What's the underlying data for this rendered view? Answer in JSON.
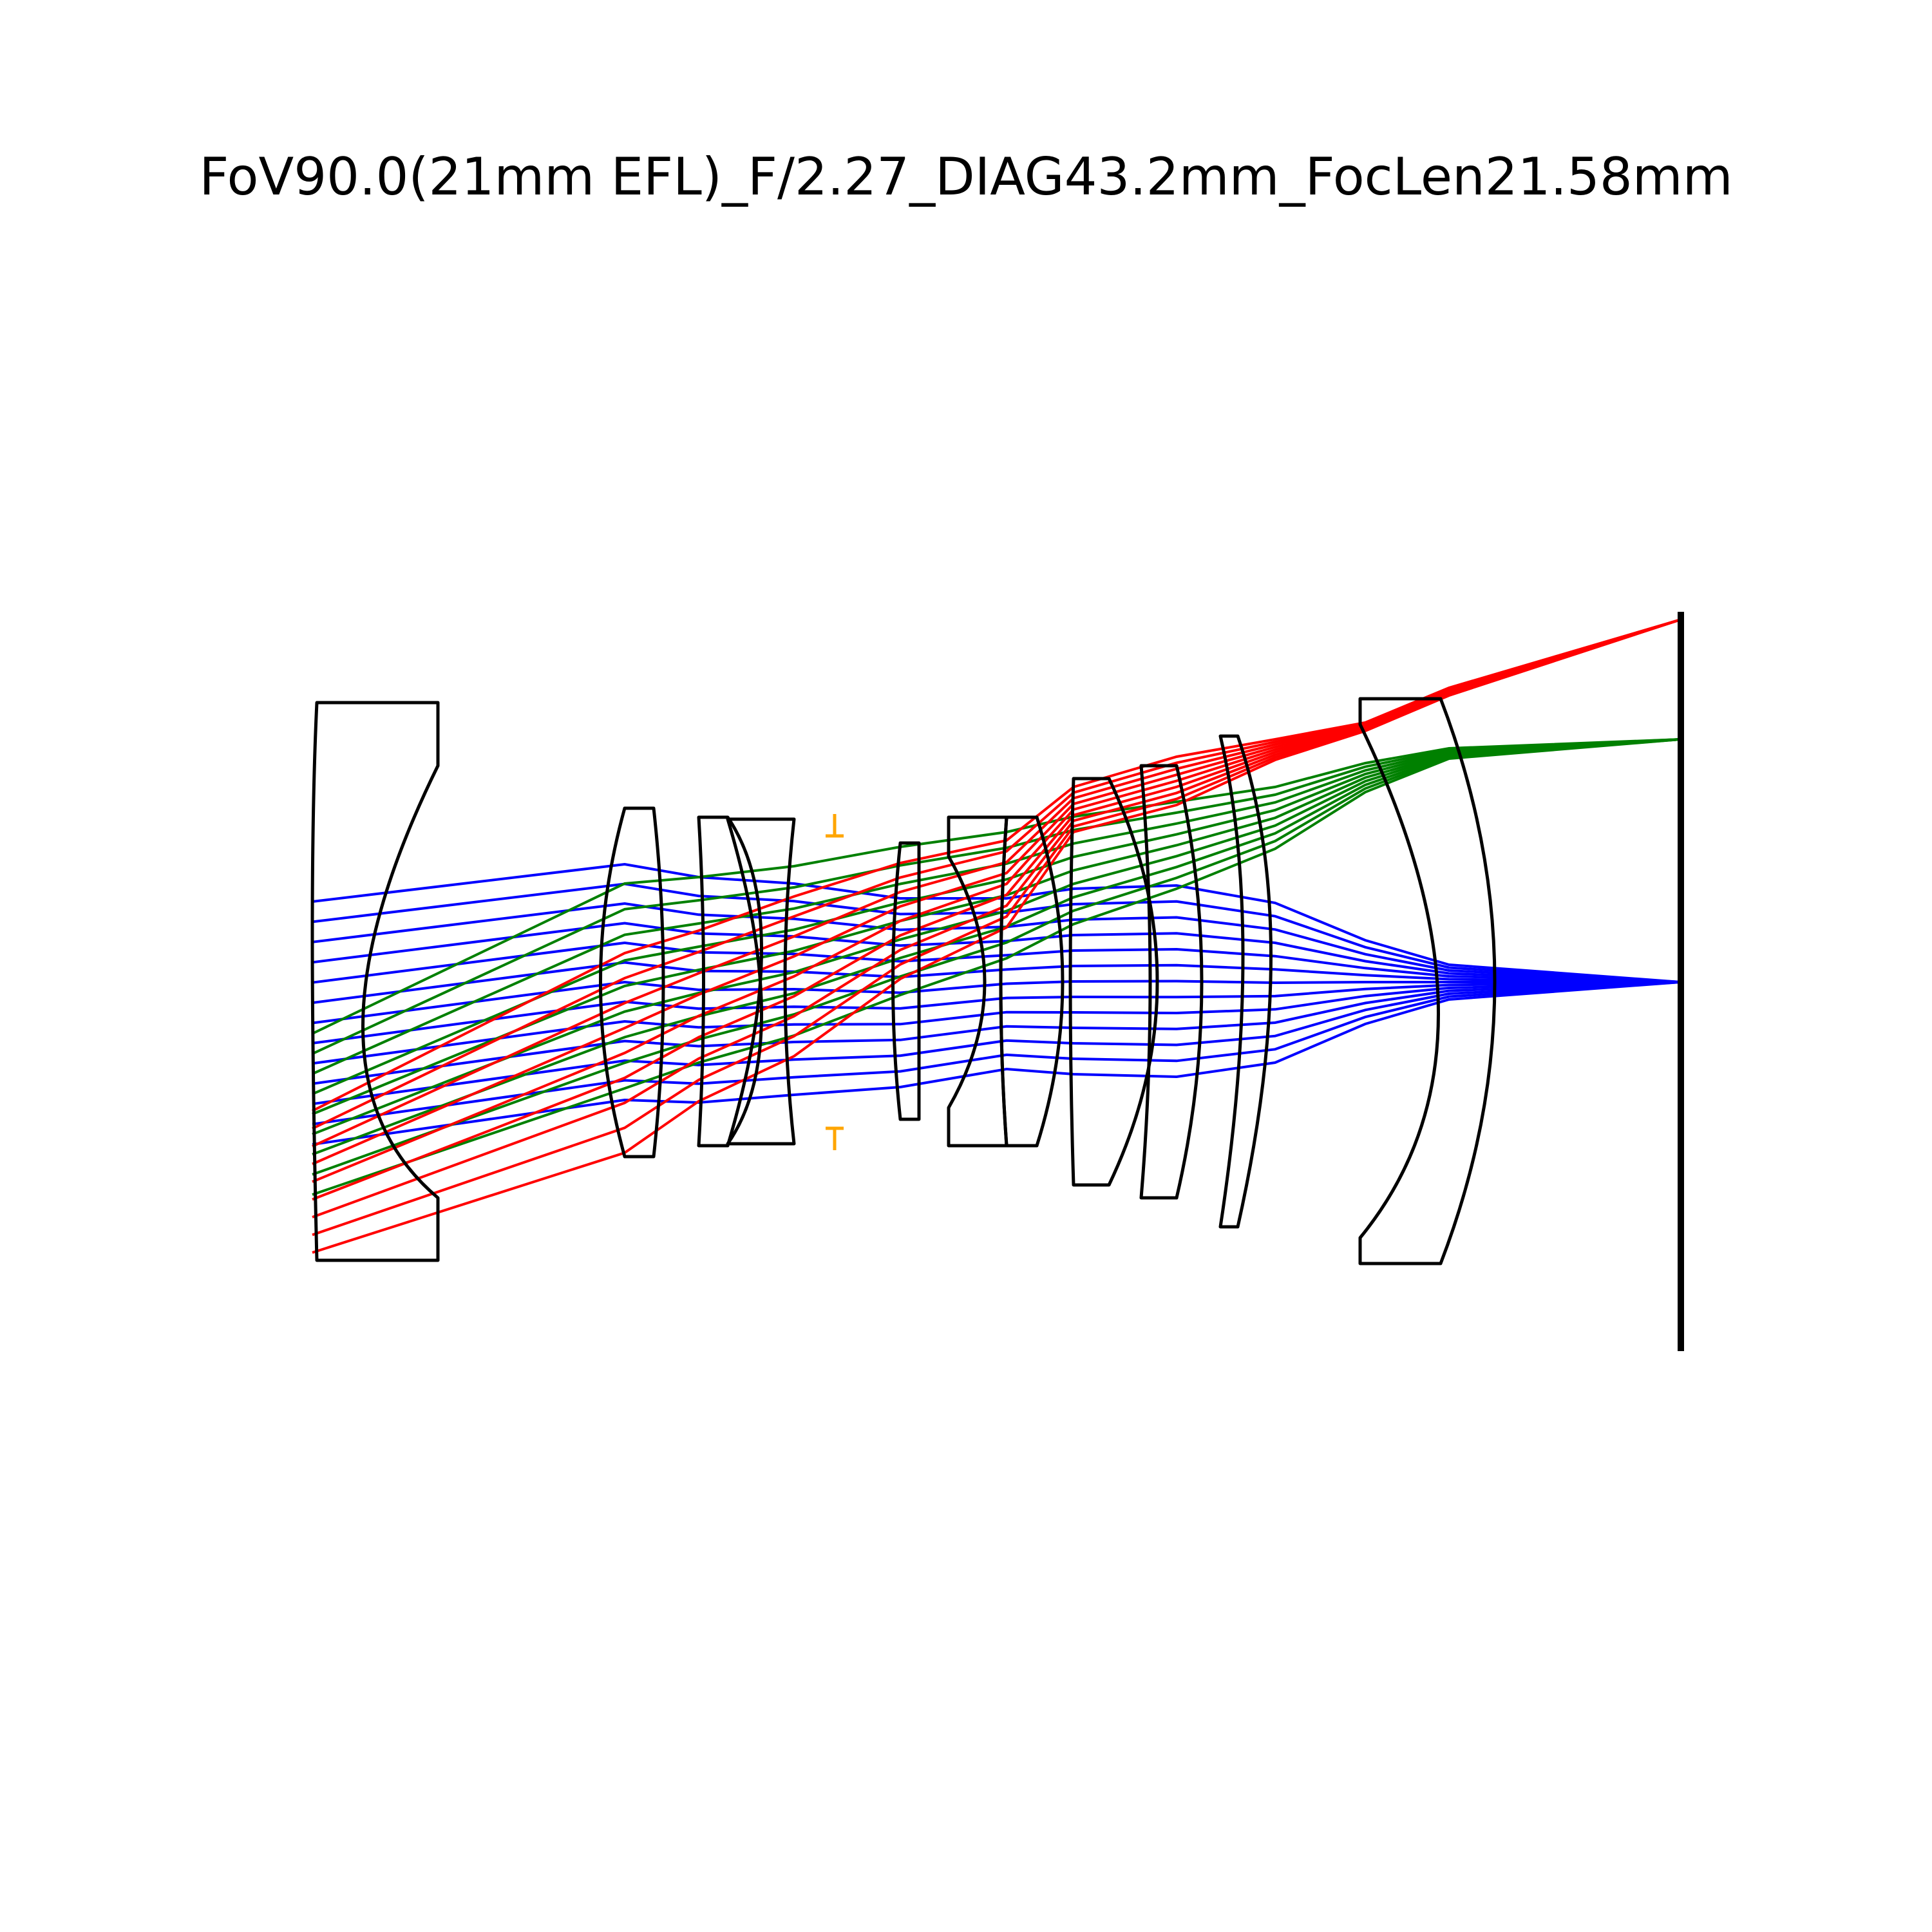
{
  "title": "FoV90.0(21mm EFL)_F/2.27_DIAG43.2mm_FocLen21.58mm",
  "colors": {
    "on_axis": "#0000ff",
    "mid_field": "#008000",
    "full_field": "#ff0000",
    "aperture_stop": "#ffa500",
    "lens_outline": "#000000"
  },
  "fields": [
    {
      "color_key": "on_axis"
    },
    {
      "color_key": "mid_field"
    },
    {
      "color_key": "full_field"
    }
  ]
}
